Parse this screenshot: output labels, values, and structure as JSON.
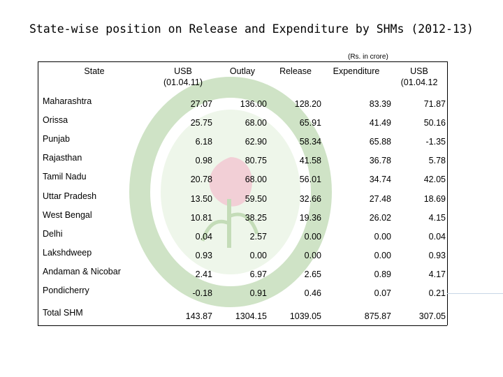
{
  "title": "State-wise position on Release and Expenditure by SHMs (2012-13)",
  "unit_note": "(Rs. in crore)",
  "headers": {
    "state": "State",
    "usb_open": "USB",
    "usb_open_date": "(01.04.11)",
    "outlay": "Outlay",
    "release": "Release",
    "expenditure": "Expenditure",
    "usb_close": "USB",
    "usb_close_date": "(01.04.12"
  },
  "rows": [
    {
      "state": "Maharashtra",
      "usb_open": "27.07",
      "outlay": "136.00",
      "release": "128.20",
      "expenditure": "83.39",
      "usb_close": "71.87"
    },
    {
      "state": "Orissa",
      "usb_open": "25.75",
      "outlay": "68.00",
      "release": "65.91",
      "expenditure": "41.49",
      "usb_close": "50.16"
    },
    {
      "state": "Punjab",
      "usb_open": "6.18",
      "outlay": "62.90",
      "release": "58.34",
      "expenditure": "65.88",
      "usb_close": "-1.35"
    },
    {
      "state": "Rajasthan",
      "usb_open": "0.98",
      "outlay": "80.75",
      "release": "41.58",
      "expenditure": "36.78",
      "usb_close": "5.78"
    },
    {
      "state": "Tamil Nadu",
      "usb_open": "20.78",
      "outlay": "68.00",
      "release": "56.01",
      "expenditure": "34.74",
      "usb_close": "42.05"
    },
    {
      "state": "Uttar Pradesh",
      "usb_open": "13.50",
      "outlay": "59.50",
      "release": "32.66",
      "expenditure": "27.48",
      "usb_close": "18.69"
    },
    {
      "state": "West Bengal",
      "usb_open": "10.81",
      "outlay": "38.25",
      "release": "19.36",
      "expenditure": "26.02",
      "usb_close": "4.15"
    },
    {
      "state": "Delhi",
      "usb_open": "0.04",
      "outlay": "2.57",
      "release": "0.00",
      "expenditure": "0.00",
      "usb_close": "0.04"
    },
    {
      "state": "Lakshdweep",
      "usb_open": "0.93",
      "outlay": "0.00",
      "release": "0.00",
      "expenditure": "0.00",
      "usb_close": "0.93"
    },
    {
      "state": "Andaman & Nicobar",
      "usb_open": "2.41",
      "outlay": "6.97",
      "release": "2.65",
      "expenditure": "0.89",
      "usb_close": "4.17"
    },
    {
      "state": "Pondicherry",
      "usb_open": "-0.18",
      "outlay": "0.91",
      "release": "0.46",
      "expenditure": "0.07",
      "usb_close": "0.21"
    }
  ],
  "total": {
    "state": "Total SHM",
    "usb_open": "143.87",
    "outlay": "1304.15",
    "release": "1039.05",
    "expenditure": "875.87",
    "usb_close": "307.05"
  },
  "colors": {
    "watermark": "#d8ead0",
    "watermark_dark": "#b9d6b0"
  }
}
